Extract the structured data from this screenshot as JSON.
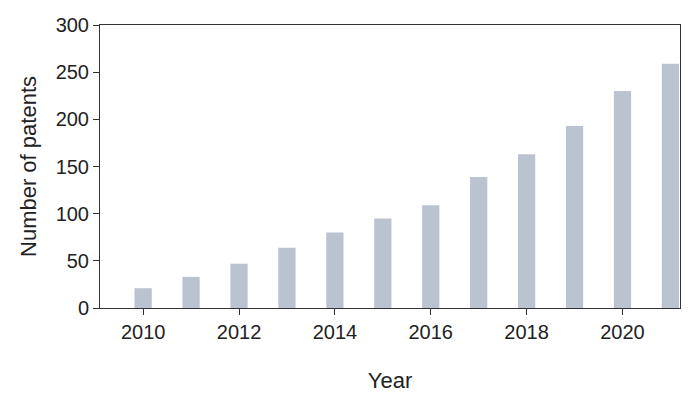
{
  "chart_data": {
    "type": "bar",
    "x_label": "Year",
    "y_label": "Number of patents",
    "x": [
      2010,
      2011,
      2012,
      2013,
      2014,
      2015,
      2016,
      2017,
      2018,
      2019,
      2020,
      2021
    ],
    "values": [
      21,
      33,
      47,
      64,
      80,
      95,
      109,
      139,
      163,
      193,
      230,
      259
    ],
    "color": "#bcc3d0",
    "xlim": [
      2009.1,
      2021.2
    ],
    "xticks": [
      2010,
      2012,
      2014,
      2016,
      2018,
      2020
    ],
    "ylim": [
      0,
      300
    ],
    "yticks": [
      0,
      50,
      100,
      150,
      200,
      250,
      300
    ],
    "grid": false
  }
}
